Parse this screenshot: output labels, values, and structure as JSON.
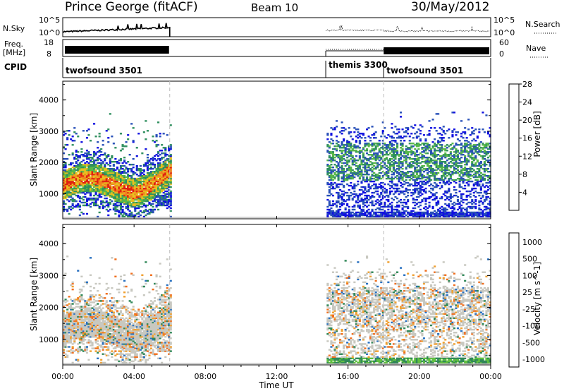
{
  "header": {
    "station": "Prince George (fitACF)",
    "beam": "Beam 10",
    "date": "30/May/2012"
  },
  "strip_labels": {
    "nsky": "N.Sky",
    "nsky_ticks": [
      "10^5",
      "10^0"
    ],
    "nsearch": "N.Search",
    "nsearch_ticks": [
      "10^5",
      "10^0"
    ],
    "freq": "Freq.",
    "freq_unit": "[MHz]",
    "freq_ticks": [
      "18",
      "8"
    ],
    "nave": "Nave",
    "nave_ticks": [
      "60",
      "0"
    ],
    "cpid": "CPID"
  },
  "cpid_segments": [
    {
      "label": "twofsound 3501",
      "start_h": 0,
      "end_h": 6
    },
    {
      "label": "themis 3300",
      "start_h": 14.75,
      "end_h": 18
    },
    {
      "label": "twofsound 3501",
      "start_h": 18,
      "end_h": 24
    }
  ],
  "data_gap_hours": [
    6,
    14.75
  ],
  "chart_data": [
    {
      "type": "heatmap",
      "name": "power-panel",
      "ylabel": "Slant Range [km]",
      "yticks": [
        1000,
        2000,
        3000,
        4000
      ],
      "ylim": [
        200,
        4600
      ],
      "xlim": [
        0,
        24
      ],
      "colorbar_label": "Power [dB]",
      "colorbar_ticks": [
        "4",
        "8",
        "12",
        "16",
        "20",
        "24",
        "28"
      ],
      "colorbar_colors": [
        "#1010e0",
        "#2850b8",
        "#2f8f5f",
        "#58b848",
        "#e8c020",
        "#f08020",
        "#e02010"
      ]
    },
    {
      "type": "heatmap",
      "name": "velocity-panel",
      "ylabel": "Slant Range [km]",
      "yticks": [
        1000,
        2000,
        3000,
        4000
      ],
      "ylim": [
        200,
        4600
      ],
      "xlim": [
        0,
        24
      ],
      "colorbar_label": "Velocity [m s^-1]",
      "colorbar_ticks": [
        "1000",
        "500",
        "100",
        "25",
        "-25",
        "-100",
        "-500",
        "-1000"
      ],
      "colorbar_colors": [
        "#1820d0",
        "#2870c0",
        "#308858",
        "#60c040",
        "#c8c8c0",
        "#f0a030",
        "#f07020",
        "#e02010"
      ]
    }
  ],
  "xaxis": {
    "label": "Time UT",
    "ticks": [
      "00:00",
      "04:00",
      "08:00",
      "12:00",
      "16:00",
      "20:00",
      "00:00"
    ]
  }
}
